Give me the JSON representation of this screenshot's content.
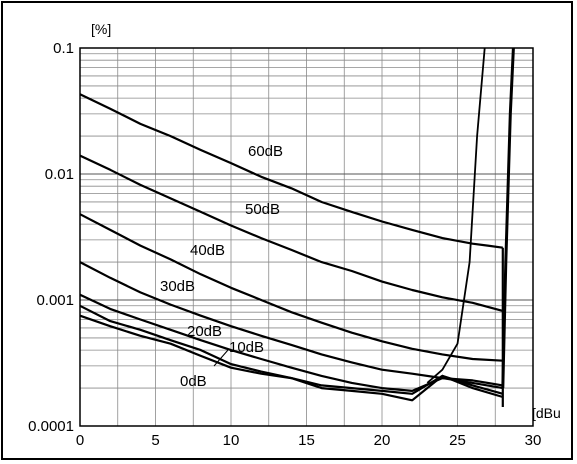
{
  "chart_data": {
    "type": "line",
    "y_unit": "[%]",
    "x_unit": "[dBu",
    "xlim": [
      0,
      30
    ],
    "ylim": [
      0.0001,
      0.1
    ],
    "y_scale": "log",
    "grid": true,
    "x_ticks": [
      "0",
      "5",
      "10",
      "15",
      "20",
      "25",
      "30"
    ],
    "y_ticks": [
      {
        "value": 0.0001,
        "label": "0.0001"
      },
      {
        "value": 0.001,
        "label": "0.001"
      },
      {
        "value": 0.01,
        "label": "0.01"
      },
      {
        "value": 0.1,
        "label": "0.1"
      }
    ],
    "series": [
      {
        "name": "60dB",
        "x": [
          0,
          2,
          4,
          6,
          8,
          10,
          12,
          14,
          16,
          18,
          20,
          22,
          24,
          26,
          27,
          28
        ],
        "y": [
          0.043,
          0.033,
          0.025,
          0.02,
          0.0155,
          0.0122,
          0.0095,
          0.0077,
          0.006,
          0.005,
          0.0042,
          0.0036,
          0.0031,
          0.0028,
          0.0027,
          0.0026
        ]
      },
      {
        "name": "50dB",
        "x": [
          0,
          2,
          4,
          6,
          8,
          10,
          12,
          14,
          16,
          18,
          20,
          22,
          24,
          26,
          28
        ],
        "y": [
          0.014,
          0.0108,
          0.0082,
          0.0064,
          0.005,
          0.0039,
          0.0031,
          0.0025,
          0.002,
          0.0017,
          0.0014,
          0.0012,
          0.00105,
          0.00095,
          0.00082
        ]
      },
      {
        "name": "40dB",
        "x": [
          0,
          2,
          4,
          6,
          8,
          10,
          12,
          14,
          16,
          18,
          20,
          22,
          24,
          26,
          28
        ],
        "y": [
          0.0048,
          0.0036,
          0.0027,
          0.0021,
          0.0016,
          0.00125,
          0.001,
          0.0008,
          0.00066,
          0.00055,
          0.00047,
          0.00041,
          0.00037,
          0.00034,
          0.00033
        ]
      },
      {
        "name": "30dB",
        "x": [
          0,
          2,
          4,
          6,
          8,
          10,
          12,
          14,
          16,
          18,
          20,
          22,
          24,
          26,
          28
        ],
        "y": [
          0.002,
          0.0015,
          0.00115,
          0.00092,
          0.00075,
          0.00062,
          0.00052,
          0.00044,
          0.00037,
          0.00032,
          0.00028,
          0.00026,
          0.00024,
          0.00023,
          0.00021
        ]
      },
      {
        "name": "20dB",
        "x": [
          0,
          2,
          4,
          6,
          8,
          10,
          12,
          14,
          16,
          18,
          20,
          22,
          24,
          26,
          28
        ],
        "y": [
          0.0011,
          0.00085,
          0.0007,
          0.00058,
          0.00048,
          0.0004,
          0.00034,
          0.00029,
          0.00025,
          0.00022,
          0.0002,
          0.00019,
          0.00024,
          0.00022,
          0.0002
        ]
      },
      {
        "name": "10dB",
        "x": [
          0,
          2,
          4,
          6,
          8,
          10,
          12,
          14,
          16,
          18,
          20,
          22,
          24,
          26,
          28
        ],
        "y": [
          0.0009,
          0.00068,
          0.00058,
          0.00048,
          0.0004,
          0.00031,
          0.00027,
          0.00024,
          0.00021,
          0.0002,
          0.00019,
          0.00018,
          0.00025,
          0.00021,
          0.00018
        ]
      },
      {
        "name": "0dB",
        "x": [
          0,
          2,
          4,
          6,
          8,
          10,
          12,
          14,
          16,
          18,
          20,
          22,
          24,
          26,
          28
        ],
        "y": [
          0.00075,
          0.00062,
          0.00052,
          0.00045,
          0.00036,
          0.00029,
          0.00026,
          0.00024,
          0.0002,
          0.00019,
          0.00018,
          0.00016,
          0.00025,
          0.0002,
          0.00017
        ]
      }
    ],
    "rise_curves": [
      {
        "x": [
          23,
          24,
          25,
          25.8,
          26.3,
          26.8
        ],
        "y": [
          0.00022,
          0.00028,
          0.00045,
          0.002,
          0.02,
          0.1
        ]
      },
      {
        "x": [
          28,
          28.2,
          28.5,
          28.7
        ],
        "y": [
          0.0002,
          0.002,
          0.03,
          0.1
        ]
      }
    ],
    "label_order": [
      "60dB",
      "50dB",
      "40dB",
      "30dB",
      "20dB",
      "10dB",
      "0dB"
    ]
  }
}
